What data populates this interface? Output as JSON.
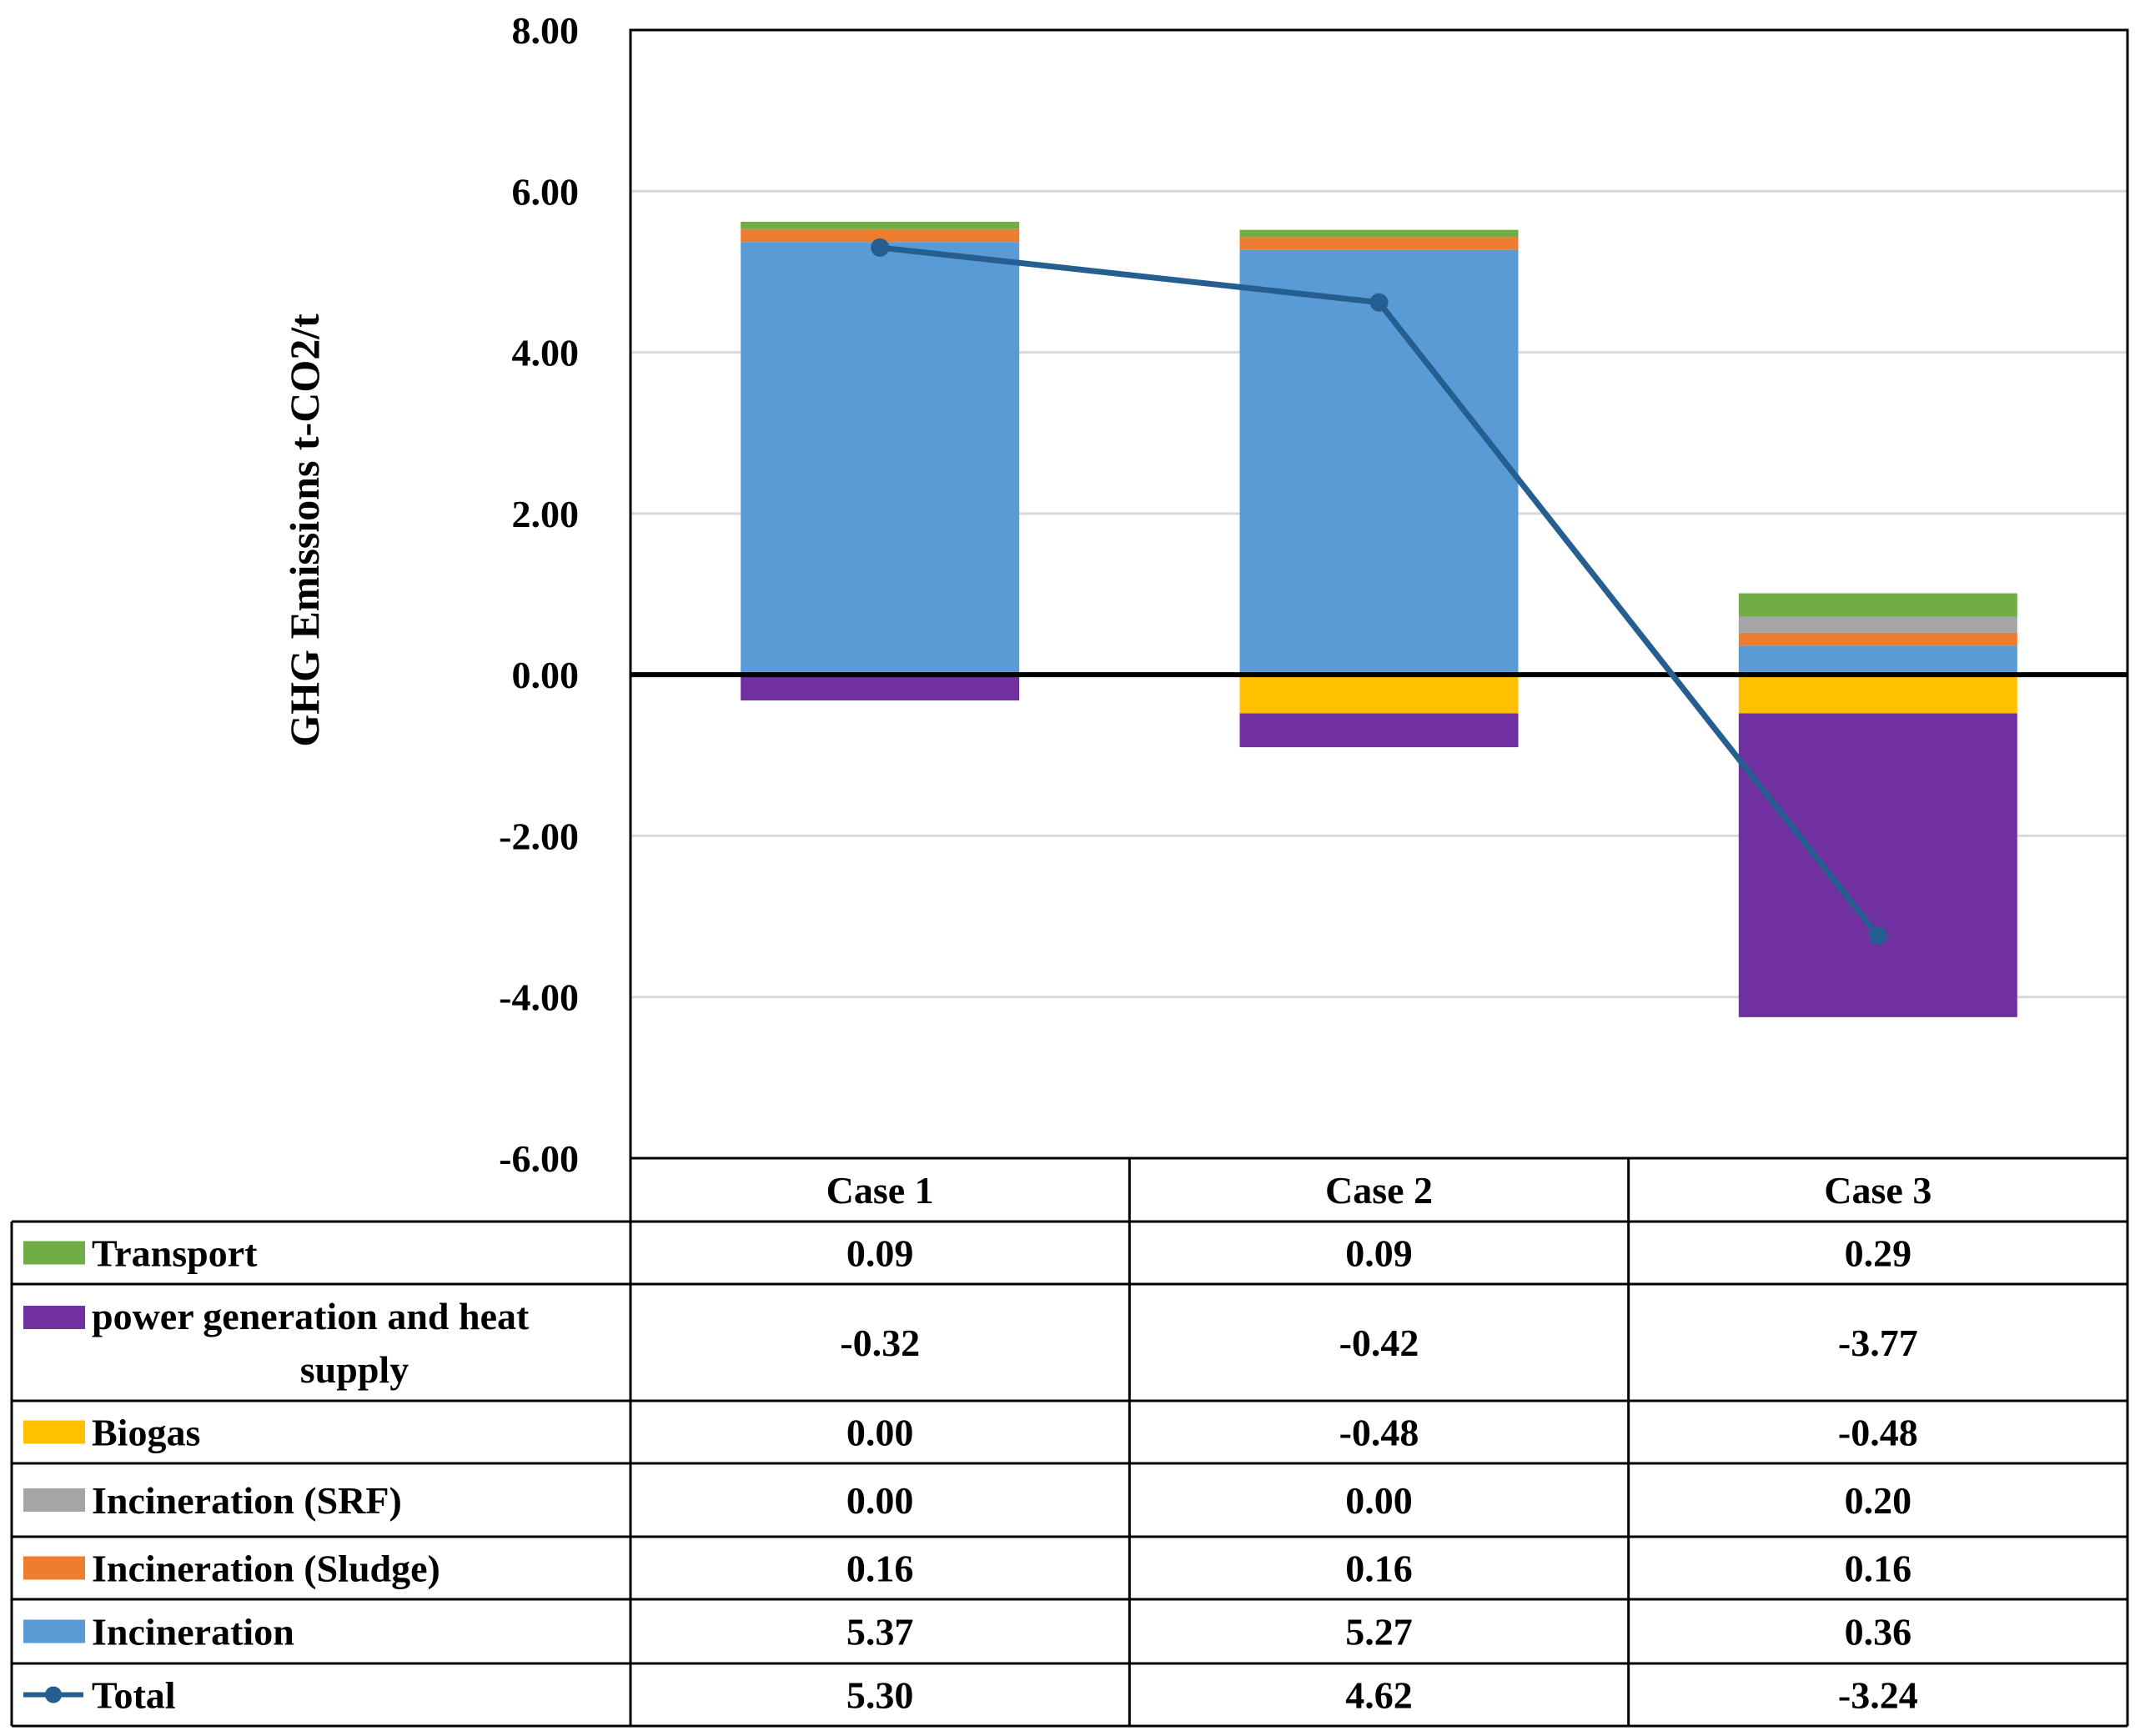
{
  "chart_data": {
    "type": "bar",
    "stacked": true,
    "categories": [
      "Case 1",
      "Case 2",
      "Case 3"
    ],
    "ylabel": "GHG  Emissions t-CO2/t",
    "ylim": [
      -6,
      8
    ],
    "yticks": [
      "8.00",
      "6.00",
      "4.00",
      "2.00",
      "0.00",
      "-2.00",
      "-4.00",
      "-6.00"
    ],
    "grid": true,
    "series": [
      {
        "name": "Transport",
        "color": "#70ad47",
        "values": [
          0.09,
          0.09,
          0.29
        ],
        "labels": [
          "0.09",
          "0.09",
          "0.29"
        ]
      },
      {
        "name": "power generation and heat supply",
        "name_line1": "power generation and heat",
        "name_line2": "supply",
        "color": "#7030a0",
        "values": [
          -0.32,
          -0.42,
          -3.77
        ],
        "labels": [
          "-0.32",
          "-0.42",
          "-3.77"
        ]
      },
      {
        "name": "Biogas",
        "color": "#ffc000",
        "values": [
          0.0,
          -0.48,
          -0.48
        ],
        "labels": [
          "0.00",
          "-0.48",
          "-0.48"
        ]
      },
      {
        "name": "Incineration  (SRF)",
        "color": "#a5a5a5",
        "values": [
          0.0,
          0.0,
          0.2
        ],
        "labels": [
          "0.00",
          "0.00",
          "0.20"
        ]
      },
      {
        "name": "Incineration (Sludge)",
        "color": "#ed7d31",
        "values": [
          0.16,
          0.16,
          0.16
        ],
        "labels": [
          "0.16",
          "0.16",
          "0.16"
        ]
      },
      {
        "name": "Incineration",
        "color": "#5b9bd5",
        "values": [
          5.37,
          5.27,
          0.36
        ],
        "labels": [
          "5.37",
          "5.27",
          "0.36"
        ]
      },
      {
        "name": "Total",
        "type": "line",
        "color": "#255e91",
        "values": [
          5.3,
          4.62,
          -3.24
        ],
        "labels": [
          "5.30",
          "4.62",
          "-3.24"
        ]
      }
    ],
    "legend": "data-table"
  }
}
